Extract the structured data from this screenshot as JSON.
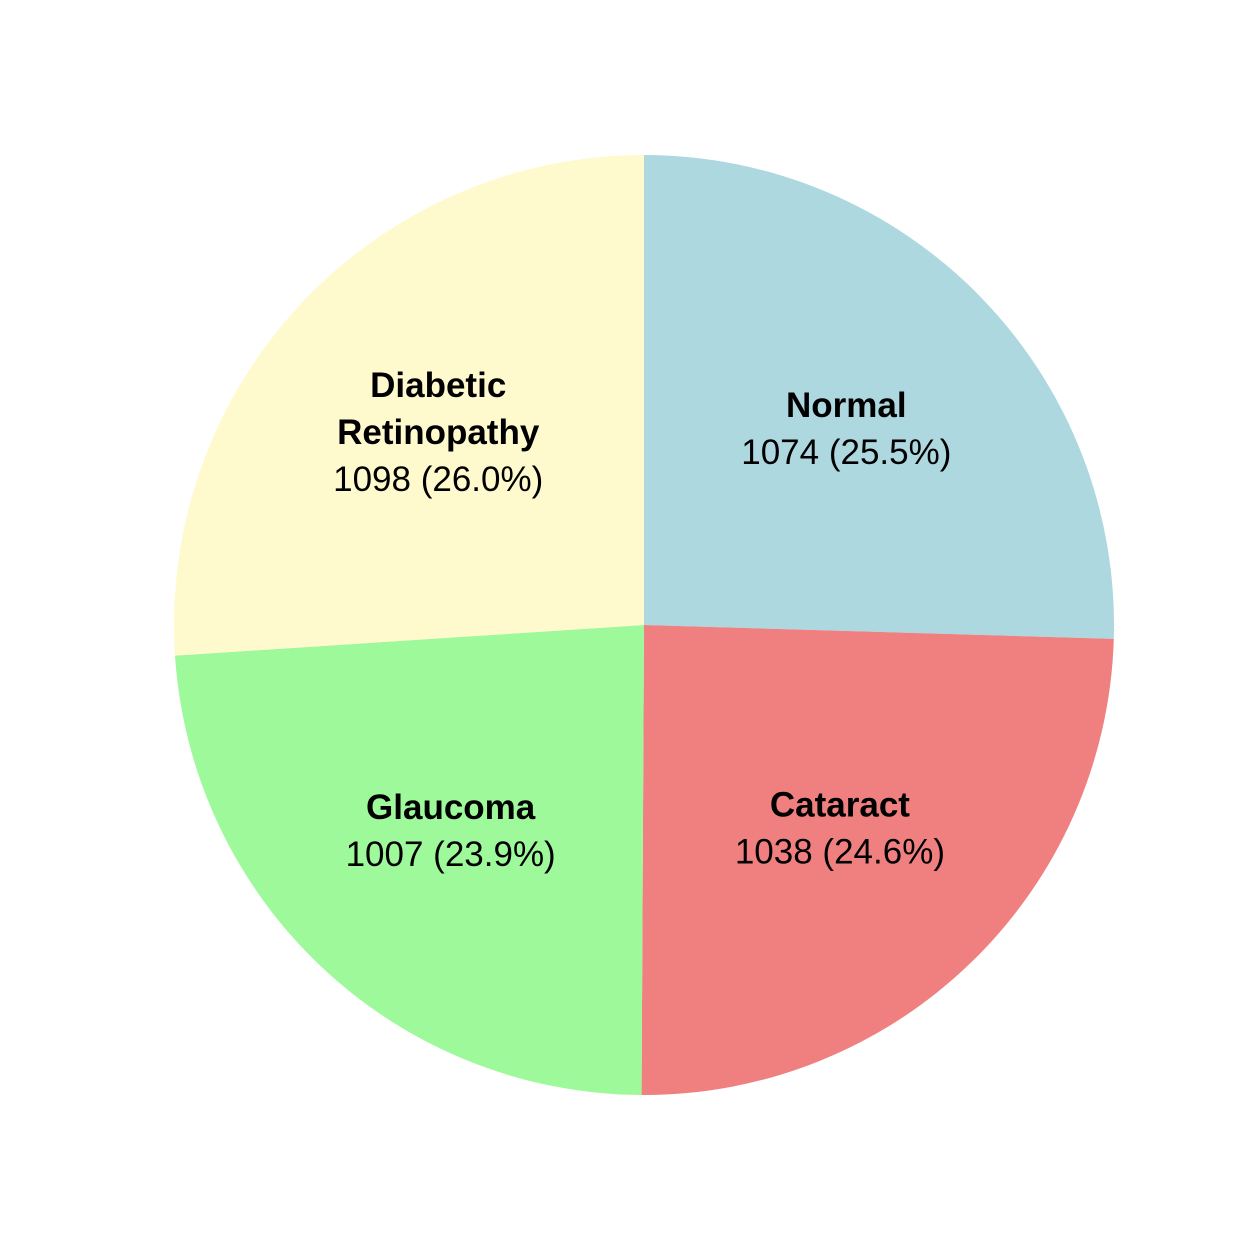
{
  "chart_data": {
    "type": "pie",
    "title": "",
    "start_angle_deg": 90,
    "direction": "clockwise",
    "slices": [
      {
        "label_lines": [
          "Normal"
        ],
        "value": 1074,
        "value_text": "1074 (25.5%)",
        "percent": 25.5,
        "color": "#add8e0"
      },
      {
        "label_lines": [
          "Cataract"
        ],
        "value": 1038,
        "value_text": "1038 (24.6%)",
        "percent": 24.6,
        "color": "#f08080"
      },
      {
        "label_lines": [
          "Glaucoma"
        ],
        "value": 1007,
        "value_text": "1007 (23.9%)",
        "percent": 23.9,
        "color": "#9ef99a"
      },
      {
        "label_lines": [
          "Diabetic",
          "Retinopathy"
        ],
        "value": 1098,
        "value_text": "1098 (26.0%)",
        "percent": 26.0,
        "color": "#fffacd"
      }
    ]
  }
}
